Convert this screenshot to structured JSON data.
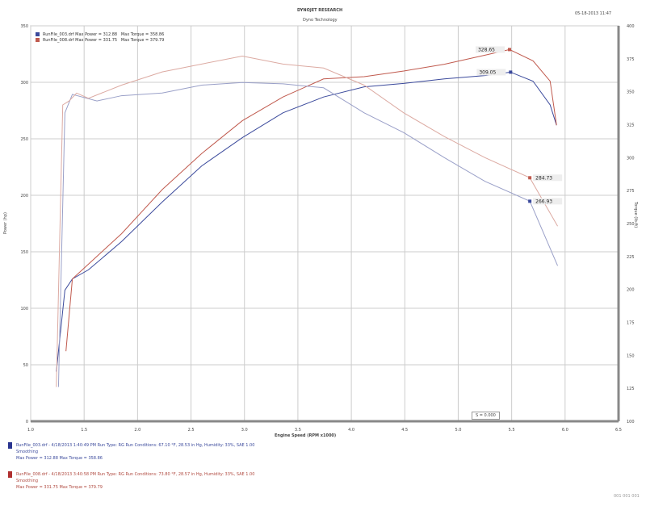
{
  "header": {
    "title": "DYNOJET RESEARCH",
    "subtitle": "Dyno Technology",
    "corner": "05-18-2013 11:47"
  },
  "chart_data": {
    "type": "line",
    "xlabel": "Engine Speed (RPM x1000)",
    "ylabel_left": "Power (hp)",
    "ylabel_right": "Torque (lb-ft)",
    "xlim": [
      1.0,
      6.5
    ],
    "ylim_left": [
      0,
      350
    ],
    "ylim_right": [
      100,
      400
    ],
    "xticks": [
      "1.0",
      "1.5",
      "2.0",
      "2.5",
      "3.0",
      "3.5",
      "4.0",
      "4.5",
      "5.0",
      "5.5",
      "6.0",
      "6.5"
    ],
    "yticks_left": [
      "0",
      "50",
      "100",
      "150",
      "200",
      "250",
      "300",
      "350"
    ],
    "yticks_right": [
      "100",
      "125",
      "150",
      "175",
      "200",
      "225",
      "250",
      "275",
      "300",
      "325",
      "350",
      "375",
      "400"
    ],
    "grid": true,
    "smoothing_label": "S = 0.000",
    "legend": [
      {
        "text": "RunFile_003.drf  Max Power = 312.88",
        "torque": "Max Torque = 358.86",
        "color": "#3b4a9c"
      },
      {
        "text": "RunFile_008.drf  Max Power = 331.75",
        "torque": "Max Torque = 379.79",
        "color": "#c05a4e"
      }
    ],
    "series": [
      {
        "kind": "power",
        "color": "#3b4a9c",
        "x": [
          1.24,
          1.32,
          1.39,
          1.54,
          1.85,
          2.23,
          2.6,
          2.98,
          3.36,
          3.74,
          4.12,
          4.49,
          4.87,
          5.25,
          5.49,
          5.7,
          5.86,
          5.92
        ],
        "y": [
          44,
          116,
          126,
          134,
          159,
          194,
          226,
          251,
          273,
          287,
          296,
          299,
          303,
          306,
          309,
          301,
          280,
          262
        ]
      },
      {
        "kind": "power",
        "color": "#c05a4e",
        "x": [
          1.33,
          1.39,
          1.85,
          2.23,
          2.6,
          2.98,
          3.36,
          3.74,
          4.12,
          4.49,
          4.87,
          5.25,
          5.48,
          5.7,
          5.86,
          5.92
        ],
        "y": [
          62,
          126,
          166,
          205,
          237,
          266,
          287,
          303,
          305,
          310,
          316,
          324,
          329,
          319,
          301,
          262
        ]
      },
      {
        "kind": "torque",
        "color": "#9aa0c8",
        "x": [
          1.26,
          1.32,
          1.39,
          1.62,
          1.85,
          2.23,
          2.6,
          2.98,
          3.36,
          3.74,
          4.12,
          4.49,
          4.87,
          5.25,
          5.67,
          5.93
        ],
        "y": [
          126,
          334,
          348,
          343,
          347,
          349,
          355,
          357,
          356,
          353,
          334,
          319,
          300,
          282,
          267,
          218
        ]
      },
      {
        "kind": "torque",
        "color": "#dcaaa2",
        "x": [
          1.24,
          1.3,
          1.36,
          1.43,
          1.54,
          1.85,
          2.23,
          2.6,
          2.98,
          3.36,
          3.74,
          4.12,
          4.49,
          4.87,
          5.25,
          5.67,
          5.93
        ],
        "y": [
          126,
          340,
          343,
          349,
          345,
          355,
          365,
          371,
          377,
          371,
          368,
          355,
          334,
          316,
          300,
          284.7,
          248
        ]
      }
    ],
    "annotations": [
      {
        "label": "328.65",
        "x": 5.48,
        "y": 329,
        "axis": "left",
        "color": "#c05a4e"
      },
      {
        "label": "309.05",
        "x": 5.49,
        "y": 309,
        "axis": "left",
        "color": "#3b4a9c"
      },
      {
        "label": "284.73",
        "x": 5.67,
        "y": 284.73,
        "axis": "right",
        "color": "#c05a4e"
      },
      {
        "label": "266.93",
        "x": 5.67,
        "y": 266.93,
        "axis": "right",
        "color": "#3b4a9c"
      }
    ]
  },
  "footer": {
    "runs": [
      {
        "line1": "RunFile_003.drf - 4/18/2013 1:40:49 PM  Run Type: RG  Run Conditions: 67.10 °F, 28.53 in Hg, Humidity: 33%, SAE 1.00",
        "line2": "Smoothing",
        "line3": "Max Power = 312.88  Max Torque = 358.86",
        "color": "#3b4a9c"
      },
      {
        "line1": "RunFile_008.drf - 4/18/2013 3:40:58 PM  Run Type: RG  Run Conditions: 73.80 °F, 28.57 in Hg, Humidity: 33%, SAE 1.00",
        "line2": "Smoothing",
        "line3": "Max Power = 331.75  Max Torque = 379.79",
        "color": "#c05a4e"
      }
    ],
    "page": "001 001 001"
  }
}
